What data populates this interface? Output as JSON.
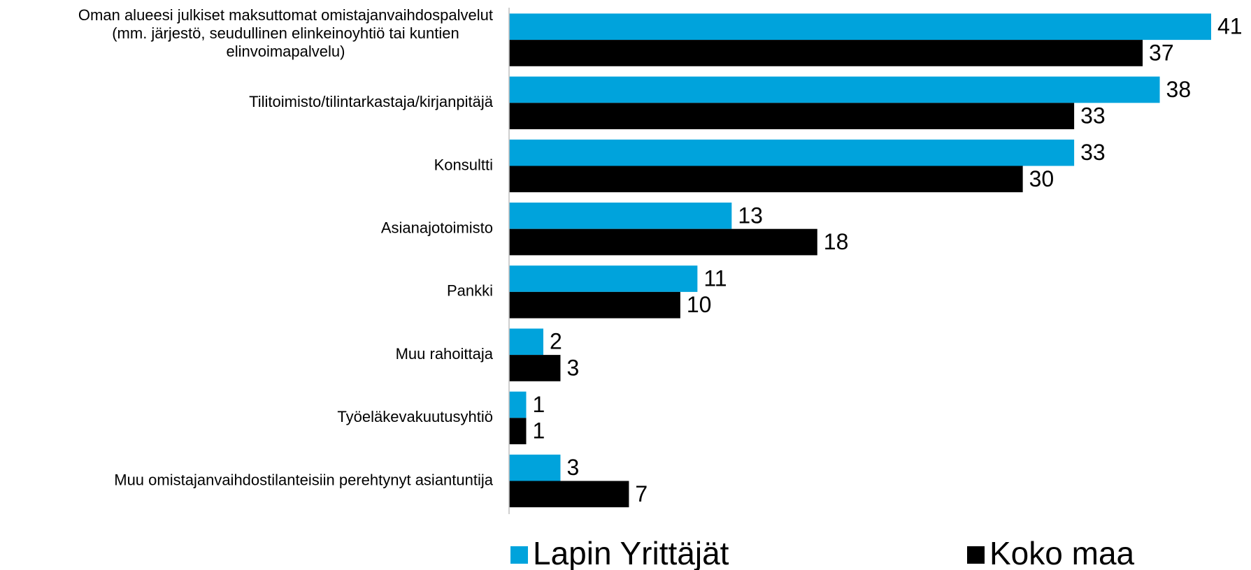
{
  "chart_data": {
    "type": "bar",
    "orientation": "horizontal",
    "categories": [
      "Oman alueesi julkiset maksuttomat omistajanvaihdospalvelut\n(mm. järjestö, seudullinen elinkeinoyhtiö tai  kuntien\nelinvoimapalvelu)",
      "Tilitoimisto/tilintarkastaja/kirjanpitäjä",
      "Konsultti",
      "Asianajotoimisto",
      "Pankki",
      "Muu rahoittaja",
      "Työeläkevakuutusyhtiö",
      "Muu omistajanvaihdostilanteisiin perehtynyt asiantuntija"
    ],
    "series": [
      {
        "name": "Lapin Yrittäjät",
        "color": "#00a3dc",
        "values": [
          41,
          38,
          33,
          13,
          11,
          2,
          1,
          3
        ]
      },
      {
        "name": "Koko maa",
        "color": "#000000",
        "values": [
          37,
          33,
          30,
          18,
          10,
          3,
          1,
          7
        ]
      }
    ],
    "legend": "bottom"
  }
}
